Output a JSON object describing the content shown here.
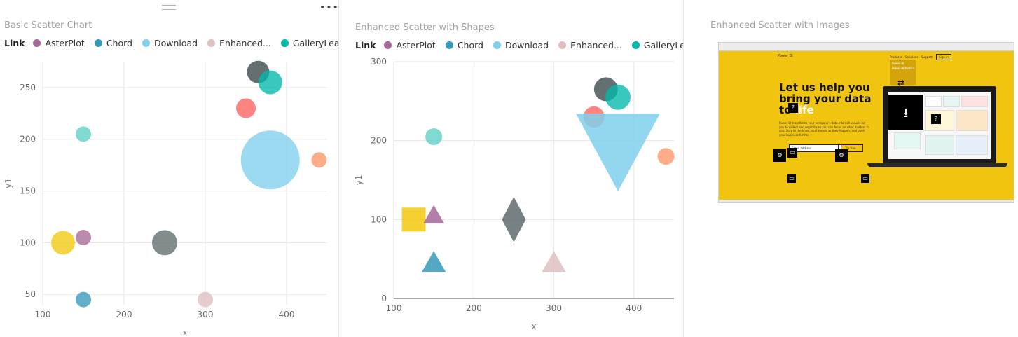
{
  "panel1": {
    "title": "Basic Scatter Chart",
    "legend": {
      "title": "Link",
      "items": [
        {
          "label": "AsterPlot",
          "color": "#a66999"
        },
        {
          "label": "Chord",
          "color": "#3599b8"
        },
        {
          "label": "Download",
          "color": "#7fd0ec"
        },
        {
          "label": "Enhanced...",
          "color": "#dfbfbf"
        },
        {
          "label": "GalleryLea...",
          "color": "#01b8aa"
        }
      ]
    }
  },
  "panel2": {
    "title": "Enhanced Scatter with Shapes",
    "legend": {
      "title": "Link",
      "items": [
        {
          "label": "AsterPlot",
          "color": "#a66999"
        },
        {
          "label": "Chord",
          "color": "#3599b8"
        },
        {
          "label": "Download",
          "color": "#7fd0ec"
        },
        {
          "label": "Enhanced...",
          "color": "#dfbfbf"
        },
        {
          "label": "GalleryLea...",
          "color": "#01b8aa"
        }
      ]
    }
  },
  "panel3": {
    "title": "Enhanced Scatter with  Images",
    "screenshot": {
      "brand": "Power BI",
      "nav": [
        "Products",
        "Solutions",
        "Support"
      ],
      "signin": "Sign in",
      "menu_items": [
        "Power BI",
        "Power BI Mobile"
      ],
      "headline_1": "Let us help you",
      "headline_2": "bring your data",
      "headline_3": "to",
      "headline_highlight": "life",
      "body": "Power BI transforms your company's data into rich visuals for you to collect and organize so you can focus on what matters to you. Stay in the know, spot trends as they happen, and push your business further.",
      "email_placeholder": "Email address",
      "try_label": "Try free",
      "brand_color": "#f2c811"
    }
  },
  "chart_data": [
    {
      "type": "scatter",
      "title": "Basic Scatter Chart",
      "xlabel": "x",
      "ylabel": "y1",
      "xlim": [
        100,
        450
      ],
      "ylim": [
        40,
        275
      ],
      "xticks": [
        100,
        200,
        300,
        400
      ],
      "yticks": [
        50,
        100,
        150,
        200,
        250
      ],
      "grid": true,
      "legend_position": "top",
      "points": [
        {
          "x": 125,
          "y": 100,
          "size": 17,
          "color": "#f2c80f"
        },
        {
          "x": 150,
          "y": 105,
          "size": 11,
          "color": "#a66999",
          "series": "AsterPlot"
        },
        {
          "x": 150,
          "y": 205,
          "size": 11,
          "color": "#5ccfc4"
        },
        {
          "x": 150,
          "y": 45,
          "size": 11,
          "color": "#3599b8",
          "series": "Chord"
        },
        {
          "x": 250,
          "y": 100,
          "size": 18,
          "color": "#5f6b6d"
        },
        {
          "x": 300,
          "y": 45,
          "size": 11,
          "color": "#dfbfbf",
          "series": "Enhanced..."
        },
        {
          "x": 350,
          "y": 230,
          "size": 14,
          "color": "#fd625e"
        },
        {
          "x": 365,
          "y": 265,
          "size": 16,
          "color": "#374649"
        },
        {
          "x": 380,
          "y": 255,
          "size": 17,
          "color": "#01b8aa",
          "series": "GalleryLea..."
        },
        {
          "x": 380,
          "y": 180,
          "size": 42,
          "color": "#7fd0ec",
          "series": "Download"
        },
        {
          "x": 440,
          "y": 180,
          "size": 11,
          "color": "#fe9666"
        }
      ]
    },
    {
      "type": "scatter",
      "title": "Enhanced Scatter with Shapes",
      "xlabel": "x",
      "ylabel": "y1",
      "xlim": [
        100,
        450
      ],
      "ylim": [
        0,
        300
      ],
      "xticks": [
        100,
        200,
        300,
        400
      ],
      "yticks": [
        0,
        100,
        200,
        300
      ],
      "grid": true,
      "legend_position": "top",
      "points": [
        {
          "x": 125,
          "y": 100,
          "size": 17,
          "shape": "square",
          "color": "#f2c80f"
        },
        {
          "x": 150,
          "y": 105,
          "size": 15,
          "shape": "triangle",
          "color": "#a66999",
          "series": "AsterPlot"
        },
        {
          "x": 150,
          "y": 205,
          "size": 12,
          "shape": "circle",
          "color": "#5ccfc4"
        },
        {
          "x": 150,
          "y": 45,
          "size": 17,
          "shape": "triangle",
          "color": "#3599b8",
          "series": "Chord"
        },
        {
          "x": 250,
          "y": 100,
          "size": 17,
          "shape": "diamond",
          "color": "#5f6b6d"
        },
        {
          "x": 300,
          "y": 45,
          "size": 17,
          "shape": "triangle",
          "color": "#dfbfbf",
          "series": "Enhanced..."
        },
        {
          "x": 350,
          "y": 230,
          "size": 15,
          "shape": "circle",
          "color": "#fd625e"
        },
        {
          "x": 365,
          "y": 265,
          "size": 17,
          "shape": "circle",
          "color": "#374649"
        },
        {
          "x": 380,
          "y": 255,
          "size": 18,
          "shape": "circle",
          "color": "#01b8aa",
          "series": "GalleryLea..."
        },
        {
          "x": 380,
          "y": 205,
          "size": 60,
          "shape": "triangle-down",
          "color": "#7fd0ec",
          "series": "Download"
        },
        {
          "x": 440,
          "y": 180,
          "size": 12,
          "shape": "circle",
          "color": "#fe9666"
        }
      ]
    }
  ]
}
